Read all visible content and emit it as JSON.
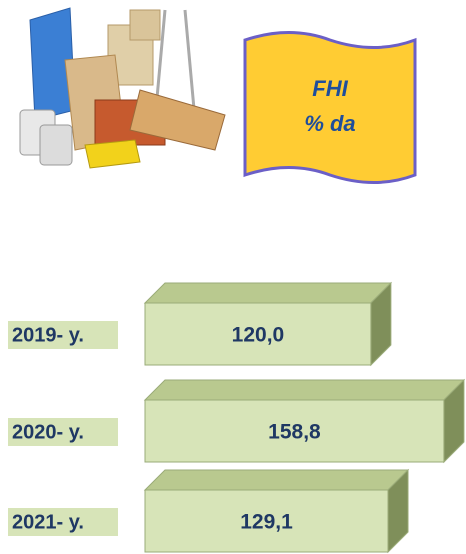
{
  "chart_data": {
    "type": "bar",
    "orientation": "horizontal",
    "title": "FHI",
    "subtitle": "% da",
    "categories": [
      "2019- y.",
      "2020- y.",
      "2021- y."
    ],
    "values": [
      120.0,
      158.8,
      129.1
    ],
    "value_labels": [
      "120,0",
      "158,8",
      "129,1"
    ],
    "color": "#d7e4b8",
    "xlim": [
      0,
      170
    ]
  }
}
